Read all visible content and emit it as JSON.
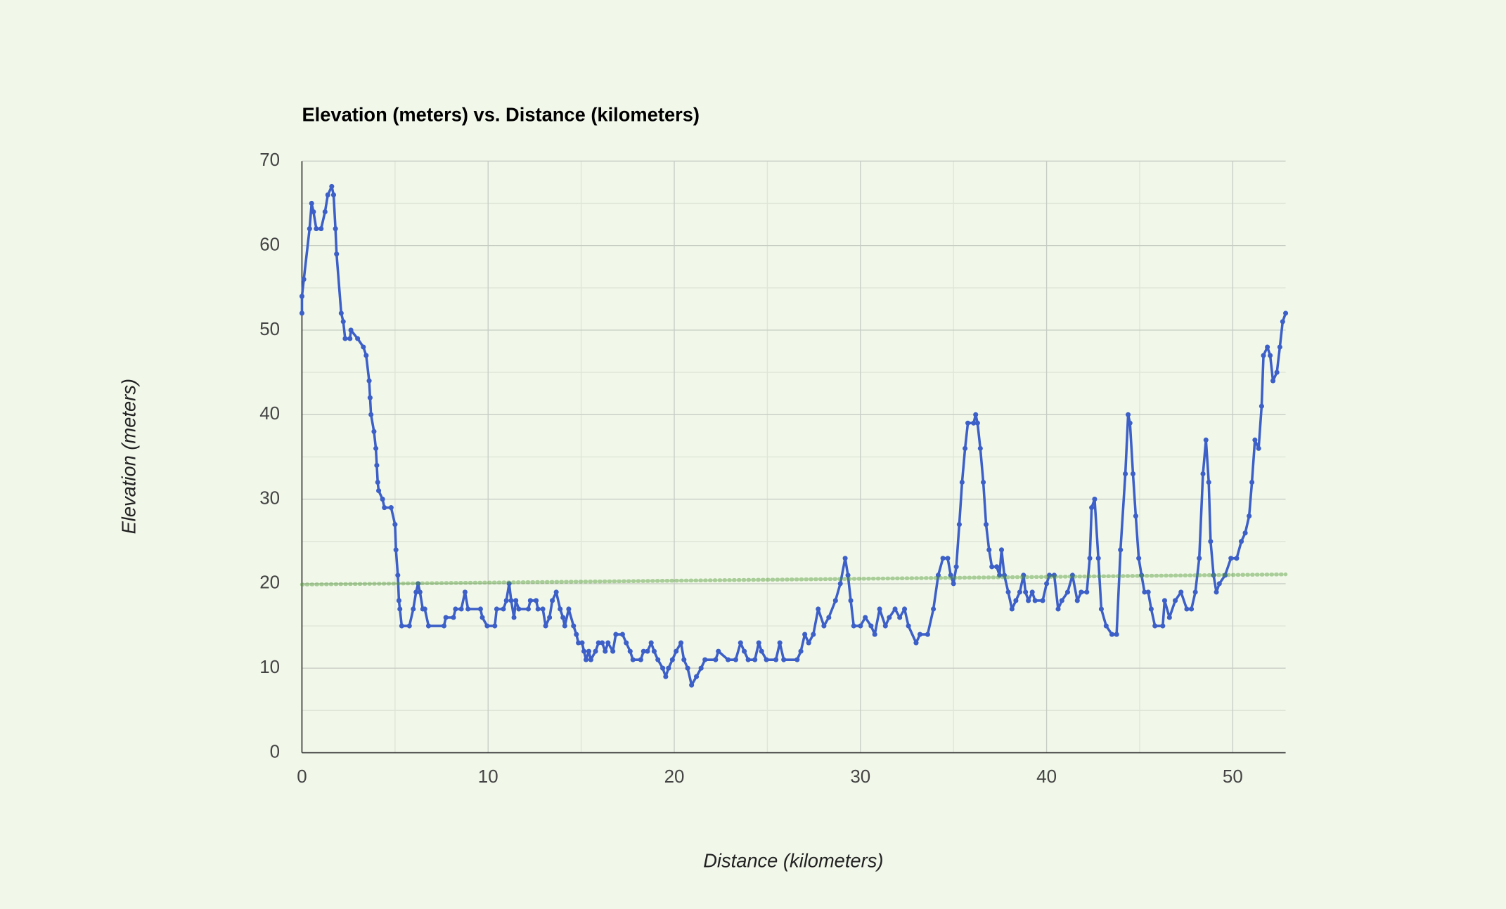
{
  "chart_data": {
    "type": "line",
    "title": "Elevation (meters) vs. Distance (kilometers)",
    "x_label": "Distance (kilometers)",
    "y_label": "Elevation (meters)",
    "xlim": [
      0,
      52.84
    ],
    "ylim": [
      0,
      70
    ],
    "xticks": [
      0,
      10,
      20,
      30,
      40,
      50
    ],
    "yticks": [
      0,
      10,
      20,
      30,
      40,
      50,
      60,
      70
    ],
    "grid": true,
    "minor_grid": true,
    "series": [
      {
        "color": "#3c5fc8",
        "points": true,
        "x": [
          0,
          0,
          0.1,
          0.41,
          0.52,
          0.62,
          0.77,
          1.03,
          1.24,
          1.39,
          1.6,
          1.7,
          1.8,
          1.86,
          2.11,
          2.22,
          2.32,
          2.58,
          2.63,
          2.99,
          3.3,
          3.45,
          3.61,
          3.66,
          3.71,
          3.87,
          3.97,
          4.02,
          4.07,
          4.12,
          4.33,
          4.43,
          4.79,
          5.0,
          5.05,
          5.15,
          5.21,
          5.26,
          5.36,
          5.77,
          5.98,
          6.13,
          6.24,
          6.34,
          6.49,
          6.6,
          6.8,
          7.63,
          7.73,
          8.14,
          8.25,
          8.56,
          8.76,
          8.92,
          9.59,
          9.69,
          9.95,
          10.36,
          10.46,
          10.82,
          10.98,
          11.13,
          11.24,
          11.39,
          11.49,
          11.65,
          12.16,
          12.27,
          12.58,
          12.68,
          12.94,
          13.09,
          13.3,
          13.45,
          13.66,
          13.87,
          14.02,
          14.12,
          14.33,
          14.59,
          14.74,
          14.85,
          15.05,
          15.15,
          15.26,
          15.41,
          15.52,
          15.77,
          15.93,
          16.13,
          16.29,
          16.44,
          16.7,
          16.86,
          17.22,
          17.42,
          17.63,
          17.78,
          18.2,
          18.35,
          18.56,
          18.76,
          18.92,
          19.12,
          19.38,
          19.54,
          19.69,
          19.9,
          20.1,
          20.36,
          20.52,
          20.72,
          20.93,
          21.19,
          21.44,
          21.65,
          22.22,
          22.37,
          22.89,
          23.3,
          23.56,
          23.76,
          23.97,
          24.33,
          24.54,
          24.69,
          24.95,
          25.46,
          25.67,
          25.88,
          26.6,
          26.8,
          27.01,
          27.22,
          27.47,
          27.73,
          28.04,
          28.3,
          28.66,
          28.92,
          29.18,
          29.33,
          29.48,
          29.64,
          30.0,
          30.26,
          30.57,
          30.77,
          31.03,
          31.34,
          31.55,
          31.86,
          32.11,
          32.37,
          32.58,
          32.99,
          33.2,
          33.61,
          33.92,
          34.18,
          34.43,
          34.69,
          34.85,
          35.0,
          35.15,
          35.31,
          35.46,
          35.62,
          35.77,
          36.08,
          36.19,
          36.29,
          36.44,
          36.6,
          36.75,
          36.91,
          37.06,
          37.32,
          37.47,
          37.58,
          37.73,
          37.94,
          38.14,
          38.35,
          38.56,
          38.76,
          38.87,
          39.02,
          39.23,
          39.38,
          39.79,
          40.0,
          40.15,
          40.41,
          40.62,
          40.82,
          41.13,
          41.39,
          41.65,
          41.86,
          42.16,
          42.32,
          42.42,
          42.58,
          42.78,
          42.94,
          43.2,
          43.51,
          43.76,
          43.97,
          44.23,
          44.38,
          44.48,
          44.64,
          44.79,
          44.95,
          45.1,
          45.26,
          45.46,
          45.62,
          45.82,
          46.24,
          46.34,
          46.6,
          46.91,
          47.22,
          47.53,
          47.78,
          47.99,
          48.2,
          48.4,
          48.56,
          48.71,
          48.81,
          48.97,
          49.12,
          49.28,
          49.59,
          49.9,
          50.21,
          50.46,
          50.67,
          50.88,
          51.03,
          51.19,
          51.39,
          51.55,
          51.65,
          51.86,
          52.01,
          52.16,
          52.37,
          52.53,
          52.68,
          52.84
        ],
        "values": [
          52,
          54,
          56,
          62,
          65,
          64,
          62,
          62,
          64,
          66,
          67,
          66,
          62,
          59,
          52,
          51,
          49,
          49,
          50,
          49,
          48,
          47,
          44,
          42,
          40,
          38,
          36,
          34,
          32,
          31,
          30,
          29,
          29,
          27,
          24,
          21,
          18,
          17,
          15,
          15,
          17,
          19,
          20,
          19,
          17,
          17,
          15,
          15,
          16,
          16,
          17,
          17,
          19,
          17,
          17,
          16,
          15,
          15,
          17,
          17,
          18,
          20,
          18,
          16,
          18,
          17,
          17,
          18,
          18,
          17,
          17,
          15,
          16,
          18,
          19,
          17,
          16,
          15,
          17,
          15,
          14,
          13,
          13,
          12,
          11,
          12,
          11,
          12,
          13,
          13,
          12,
          13,
          12,
          14,
          14,
          13,
          12,
          11,
          11,
          12,
          12,
          13,
          12,
          11,
          10,
          9,
          10,
          11,
          12,
          13,
          11,
          10,
          8,
          9,
          10,
          11,
          11,
          12,
          11,
          11,
          13,
          12,
          11,
          11,
          13,
          12,
          11,
          11,
          13,
          11,
          11,
          12,
          14,
          13,
          14,
          17,
          15,
          16,
          18,
          20,
          23,
          21,
          18,
          15,
          15,
          16,
          15,
          14,
          17,
          15,
          16,
          17,
          16,
          17,
          15,
          13,
          14,
          14,
          17,
          21,
          23,
          23,
          21,
          20,
          22,
          27,
          32,
          36,
          39,
          39,
          40,
          39,
          36,
          32,
          27,
          24,
          22,
          22,
          21,
          24,
          21,
          19,
          17,
          18,
          19,
          21,
          19,
          18,
          19,
          18,
          18,
          20,
          21,
          21,
          17,
          18,
          19,
          21,
          18,
          19,
          19,
          23,
          29,
          30,
          23,
          17,
          15,
          14,
          14,
          24,
          33,
          40,
          39,
          33,
          28,
          23,
          21,
          19,
          19,
          17,
          15,
          15,
          18,
          16,
          18,
          19,
          17,
          17,
          19,
          23,
          33,
          37,
          32,
          25,
          21,
          19,
          20,
          21,
          23,
          23,
          25,
          26,
          28,
          32,
          37,
          36,
          41,
          47,
          48,
          47,
          44,
          45,
          48,
          51,
          52
        ]
      },
      {
        "color": "#4f9a34",
        "style": "dotted",
        "points": false,
        "x": [
          0,
          52.84
        ],
        "values": [
          19.9,
          21.1
        ]
      }
    ]
  }
}
